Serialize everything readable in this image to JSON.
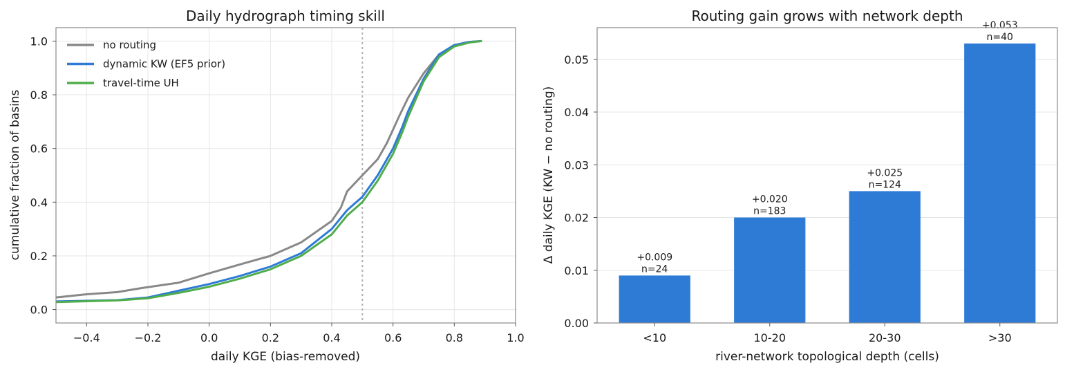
{
  "chart_data": [
    {
      "type": "line",
      "title": "Daily hydrograph timing skill",
      "xlabel": "daily KGE (bias-removed)",
      "ylabel": "cumulative fraction of basins",
      "xlim": [
        -0.5,
        1.0
      ],
      "ylim": [
        -0.05,
        1.05
      ],
      "xticks": [
        -0.4,
        -0.2,
        0.0,
        0.2,
        0.4,
        0.6,
        0.8,
        1.0
      ],
      "xtick_labels": [
        "−0.4",
        "−0.2",
        "0.0",
        "0.2",
        "0.4",
        "0.6",
        "0.8",
        "1.0"
      ],
      "yticks": [
        0.0,
        0.2,
        0.4,
        0.6,
        0.8,
        1.0
      ],
      "ytick_labels": [
        "0.0",
        "0.2",
        "0.4",
        "0.6",
        "0.8",
        "1.0"
      ],
      "grid": true,
      "legend": "top-left",
      "reference_line_x": 0.5,
      "series": [
        {
          "name": "no routing",
          "color": "#888888",
          "x": [
            -0.5,
            -0.4,
            -0.3,
            -0.22,
            -0.1,
            0.0,
            0.1,
            0.2,
            0.3,
            0.35,
            0.4,
            0.43,
            0.45,
            0.5,
            0.55,
            0.58,
            0.6,
            0.62,
            0.65,
            0.7,
            0.75,
            0.8,
            0.85,
            0.89
          ],
          "y": [
            0.045,
            0.057,
            0.065,
            0.08,
            0.1,
            0.135,
            0.168,
            0.2,
            0.25,
            0.29,
            0.33,
            0.38,
            0.44,
            0.5,
            0.56,
            0.62,
            0.67,
            0.72,
            0.79,
            0.88,
            0.95,
            0.985,
            0.997,
            1.0
          ]
        },
        {
          "name": "dynamic KW (EF5 prior)",
          "color": "#2e7bd6",
          "x": [
            -0.5,
            -0.3,
            -0.2,
            -0.1,
            0.0,
            0.1,
            0.2,
            0.3,
            0.4,
            0.45,
            0.5,
            0.55,
            0.6,
            0.63,
            0.65,
            0.7,
            0.75,
            0.8,
            0.85,
            0.89
          ],
          "y": [
            0.03,
            0.035,
            0.045,
            0.07,
            0.095,
            0.125,
            0.16,
            0.21,
            0.3,
            0.37,
            0.42,
            0.5,
            0.6,
            0.68,
            0.74,
            0.86,
            0.95,
            0.985,
            0.997,
            1.0
          ]
        },
        {
          "name": "travel-time UH",
          "color": "#4fad4a",
          "x": [
            -0.5,
            -0.3,
            -0.2,
            -0.1,
            0.0,
            0.1,
            0.2,
            0.3,
            0.4,
            0.45,
            0.5,
            0.55,
            0.6,
            0.63,
            0.65,
            0.7,
            0.75,
            0.8,
            0.85,
            0.89
          ],
          "y": [
            0.028,
            0.034,
            0.042,
            0.062,
            0.085,
            0.115,
            0.15,
            0.2,
            0.28,
            0.35,
            0.4,
            0.48,
            0.58,
            0.66,
            0.72,
            0.85,
            0.94,
            0.98,
            0.995,
            1.0
          ]
        }
      ]
    },
    {
      "type": "bar",
      "title": "Routing gain grows with network depth",
      "xlabel": "river-network topological depth (cells)",
      "ylabel": "Δ daily KGE  (KW − no routing)",
      "ylim": [
        0.0,
        0.056
      ],
      "yticks": [
        0.0,
        0.01,
        0.02,
        0.03,
        0.04,
        0.05
      ],
      "ytick_labels": [
        "0.00",
        "0.01",
        "0.02",
        "0.03",
        "0.04",
        "0.05"
      ],
      "grid": true,
      "color": "#2e7bd6",
      "categories": [
        "<10",
        "10-20",
        "20-30",
        ">30"
      ],
      "values": [
        0.009,
        0.02,
        0.025,
        0.053
      ],
      "value_labels": [
        "+0.009",
        "+0.020",
        "+0.025",
        "+0.053"
      ],
      "count_labels": [
        "n=24",
        "n=183",
        "n=124",
        "n=40"
      ]
    }
  ]
}
